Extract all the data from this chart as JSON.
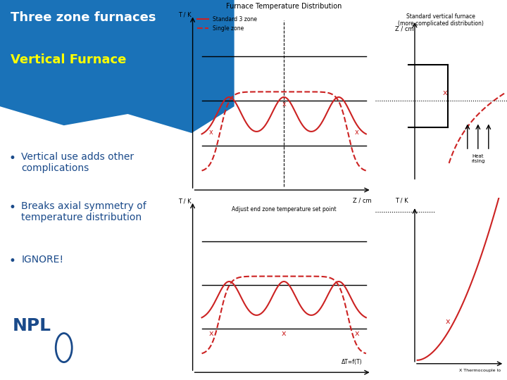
{
  "bg_color": "#ffffff",
  "header_bg": "#1a72b8",
  "title_text": "Three zone furnaces",
  "subtitle_text": "Vertical Furnace",
  "subtitle_color": "#ffff00",
  "title_color": "#ffffff",
  "bullet_color": "#1a4a8a",
  "bullets": [
    "Vertical use adds other\ncomplications",
    "Breaks axial symmetry of\ntemperature distribution",
    "IGNORE!"
  ],
  "npl_color": "#1a4a8a",
  "chart_title": "Furnace Temperature Distribution",
  "legend_solid": "Standard 3 zone",
  "legend_dashed": "Single zone",
  "right_label": "Standard vertical furnace\n(more complicated distribution)",
  "curve_color": "#cc2222",
  "axis_color": "#000000",
  "horiz_label_left": "Z / cm",
  "vert_label_left": "T / K",
  "vert_label_right": "Z / cm",
  "bottom_left_label": "T / K",
  "bottom_right_label": "T / K",
  "bottom_x_label": "ΔT=f(T)",
  "bottom_x_thermo": "X Thermocouple lo",
  "bottom_adjust_label": "Adjust end zone temperature set point"
}
